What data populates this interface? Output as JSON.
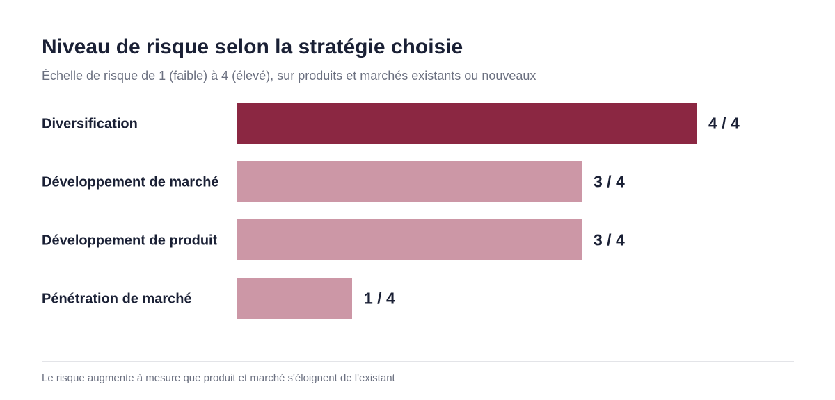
{
  "chart_data": {
    "type": "bar",
    "orientation": "horizontal",
    "title": "Niveau de risque selon la stratégie choisie",
    "subtitle": "Échelle de risque de 1 (faible) à 4 (élevé), sur produits et marchés existants ou nouveaux",
    "categories": [
      "Diversification",
      "Développement de marché",
      "Développement de produit",
      "Pénétration de marché"
    ],
    "values": [
      4,
      3,
      3,
      1
    ],
    "value_labels": [
      "4 / 4",
      "3 / 4",
      "3 / 4",
      "1 / 4"
    ],
    "xlim": [
      0,
      4
    ],
    "highlight_index": 0,
    "colors": {
      "highlight": "#8b2742",
      "default": "#cc97a6"
    },
    "grid": false,
    "legend": "none",
    "footnote": "Le risque augmente à mesure que produit et marché s'éloignent de l'existant"
  }
}
